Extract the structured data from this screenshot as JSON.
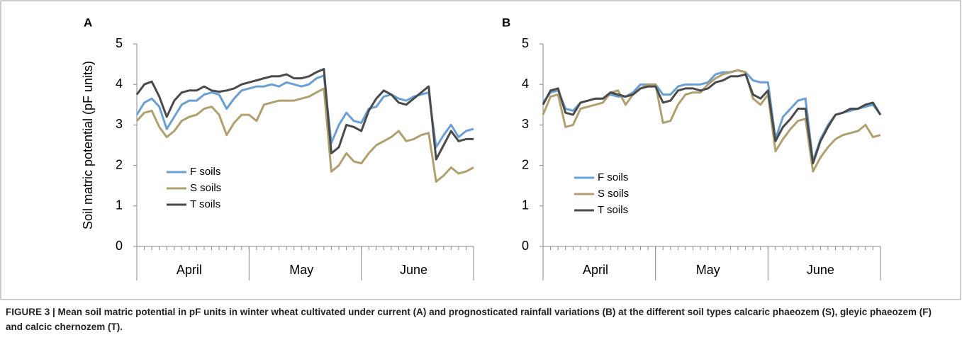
{
  "chart_data": [
    {
      "type": "line",
      "panel": "A",
      "ylabel": "Soil matric potential (pF units)",
      "categories": [
        null,
        null,
        null,
        null,
        null,
        null,
        null,
        "April",
        null,
        null,
        null,
        null,
        null,
        null,
        null,
        null,
        null,
        null,
        null,
        null,
        null,
        null,
        "May",
        null,
        null,
        null,
        null,
        null,
        null,
        null,
        null,
        null,
        null,
        null,
        null,
        null,
        null,
        "June",
        null,
        null,
        null,
        null,
        null,
        null,
        null,
        null
      ],
      "ylim": [
        0,
        5
      ],
      "yticks": [
        0,
        1,
        2,
        3,
        4,
        5
      ],
      "grid": false,
      "legend": "lower left",
      "series": [
        {
          "name": "F soils",
          "color": "#6a9fd4",
          "values": [
            3.25,
            3.55,
            3.65,
            3.45,
            2.9,
            3.2,
            3.5,
            3.6,
            3.6,
            3.75,
            3.8,
            3.75,
            3.4,
            3.65,
            3.85,
            3.9,
            3.95,
            3.95,
            4.0,
            3.95,
            4.05,
            4.0,
            3.95,
            4.0,
            4.15,
            4.22,
            2.55,
            3.0,
            3.3,
            3.1,
            3.05,
            3.4,
            3.45,
            3.7,
            3.75,
            3.65,
            3.6,
            3.7,
            3.75,
            3.8,
            2.45,
            2.75,
            3.0,
            2.7,
            2.85,
            2.9
          ]
        },
        {
          "name": "S soils",
          "color": "#b0a070",
          "values": [
            3.1,
            3.3,
            3.35,
            2.95,
            2.7,
            2.85,
            3.1,
            3.2,
            3.25,
            3.4,
            3.45,
            3.25,
            2.75,
            3.05,
            3.25,
            3.25,
            3.1,
            3.5,
            3.55,
            3.6,
            3.6,
            3.6,
            3.65,
            3.7,
            3.8,
            3.9,
            1.85,
            2.0,
            2.3,
            2.1,
            2.05,
            2.3,
            2.5,
            2.6,
            2.7,
            2.85,
            2.6,
            2.65,
            2.75,
            2.8,
            1.6,
            1.75,
            1.95,
            1.8,
            1.85,
            1.95
          ]
        },
        {
          "name": "T soils",
          "color": "#4a4a4a",
          "values": [
            3.75,
            4.0,
            4.07,
            3.7,
            3.2,
            3.6,
            3.8,
            3.85,
            3.85,
            3.95,
            3.85,
            3.82,
            3.85,
            3.9,
            4.0,
            4.05,
            4.1,
            4.15,
            4.2,
            4.2,
            4.25,
            4.15,
            4.15,
            4.2,
            4.3,
            4.38,
            2.3,
            2.45,
            3.0,
            2.95,
            2.85,
            3.35,
            3.65,
            3.85,
            3.75,
            3.55,
            3.5,
            3.65,
            3.8,
            3.95,
            2.15,
            2.5,
            2.85,
            2.6,
            2.65,
            2.65
          ]
        }
      ]
    },
    {
      "type": "line",
      "panel": "B",
      "categories": [
        null,
        null,
        null,
        null,
        null,
        null,
        null,
        "April",
        null,
        null,
        null,
        null,
        null,
        null,
        null,
        null,
        null,
        null,
        null,
        null,
        null,
        null,
        "May",
        null,
        null,
        null,
        null,
        null,
        null,
        null,
        null,
        null,
        null,
        null,
        null,
        null,
        null,
        "June",
        null,
        null,
        null,
        null,
        null,
        null,
        null,
        null
      ],
      "ylim": [
        0,
        5
      ],
      "yticks": [
        0,
        1,
        2,
        3,
        4,
        5
      ],
      "grid": false,
      "legend": "lower left",
      "series": [
        {
          "name": "F soils",
          "color": "#6a9fd4",
          "values": [
            3.55,
            3.8,
            3.85,
            3.4,
            3.35,
            3.55,
            3.6,
            3.65,
            3.65,
            3.75,
            3.7,
            3.7,
            3.8,
            4.0,
            4.0,
            4.0,
            3.75,
            3.75,
            3.95,
            4.0,
            4.0,
            4.0,
            4.05,
            4.25,
            4.3,
            4.3,
            4.35,
            4.3,
            4.1,
            4.05,
            4.05,
            2.65,
            3.2,
            3.4,
            3.6,
            3.65,
            2.1,
            2.65,
            3.0,
            3.25,
            3.3,
            3.35,
            3.4,
            3.45,
            3.5,
            3.25
          ]
        },
        {
          "name": "S soils",
          "color": "#b0a070",
          "values": [
            3.25,
            3.7,
            3.75,
            2.95,
            3.0,
            3.4,
            3.45,
            3.5,
            3.55,
            3.8,
            3.85,
            3.5,
            3.75,
            3.9,
            4.0,
            4.0,
            3.05,
            3.1,
            3.5,
            3.75,
            3.8,
            3.8,
            4.0,
            4.15,
            4.25,
            4.3,
            4.35,
            4.3,
            3.65,
            3.5,
            3.75,
            2.35,
            2.65,
            2.9,
            3.1,
            3.15,
            1.85,
            2.2,
            2.45,
            2.65,
            2.75,
            2.8,
            2.85,
            3.0,
            2.7,
            2.75
          ]
        },
        {
          "name": "T soils",
          "color": "#4a4a4a",
          "values": [
            3.5,
            3.85,
            3.9,
            3.3,
            3.25,
            3.55,
            3.6,
            3.65,
            3.65,
            3.8,
            3.75,
            3.7,
            3.75,
            3.9,
            3.95,
            3.95,
            3.55,
            3.6,
            3.85,
            3.9,
            3.9,
            3.85,
            3.9,
            4.05,
            4.1,
            4.2,
            4.2,
            4.25,
            3.75,
            3.65,
            3.85,
            2.6,
            2.95,
            3.15,
            3.4,
            3.4,
            2.05,
            2.6,
            2.95,
            3.25,
            3.3,
            3.4,
            3.4,
            3.5,
            3.55,
            3.25
          ]
        }
      ]
    }
  ],
  "caption": "FIGURE 3 | Mean soil matric potential in pF units in winter wheat cultivated under current (A) and prognosticated rainfall variations (B) at the different soil types calcaric phaeozem (S), gleyic phaeozem (F) and calcic chernozem (T)."
}
